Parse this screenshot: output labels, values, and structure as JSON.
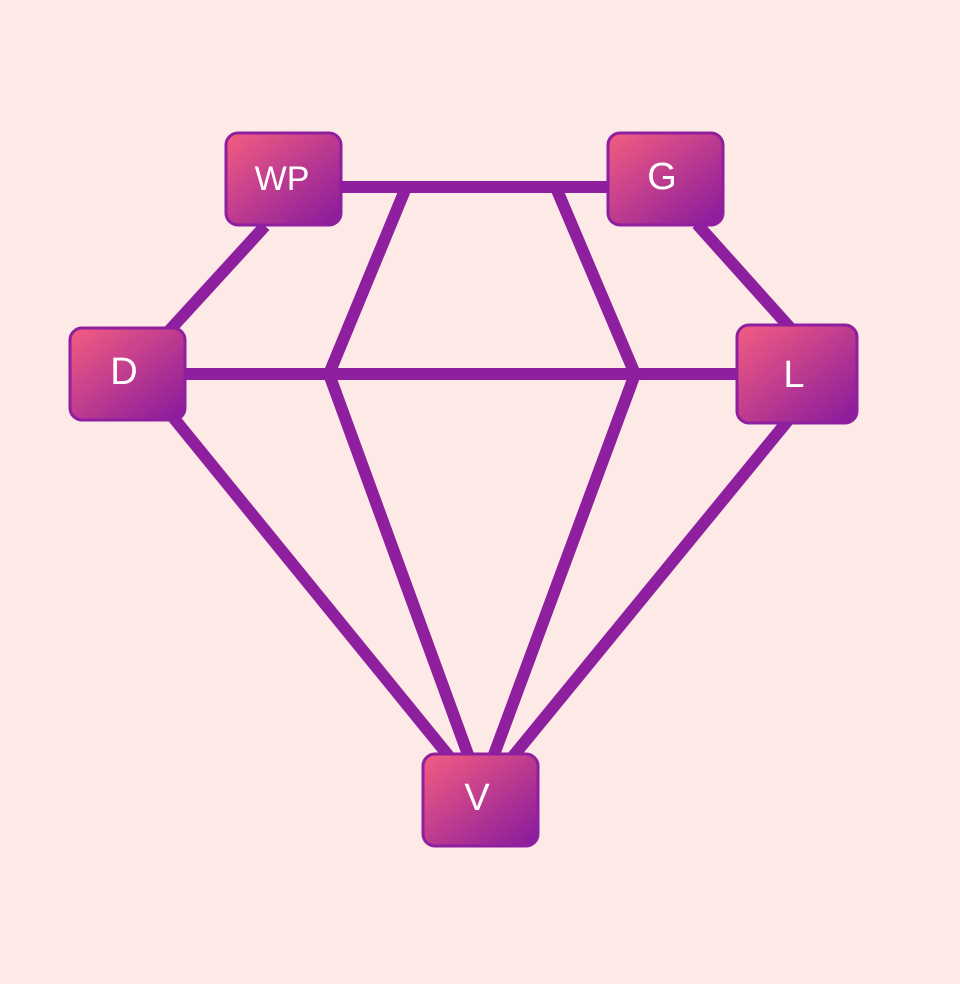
{
  "nodes": [
    {
      "label": "WP"
    },
    {
      "label": "G"
    },
    {
      "label": "D"
    },
    {
      "label": "L"
    },
    {
      "label": "V"
    }
  ]
}
